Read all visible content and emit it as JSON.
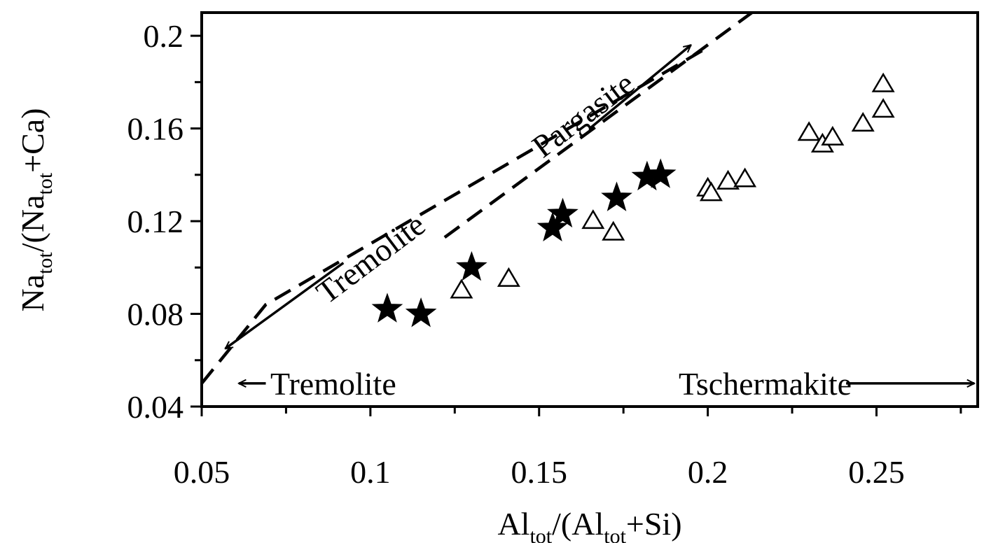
{
  "chart_data": {
    "type": "scatter",
    "x_axis": {
      "label": {
        "main": "Al",
        "sub": "tot",
        "rest_1": "/(Al",
        "sub_2": "tot",
        "rest_2": "+Si)"
      },
      "range": [
        0.05,
        0.28
      ],
      "ticks": [
        0.05,
        0.1,
        0.15,
        0.2,
        0.25
      ],
      "tick_labels": [
        "0.05",
        "0.1",
        "0.15",
        "0.2",
        "0.25"
      ],
      "minor_step": 0.025
    },
    "y_axis": {
      "label": {
        "main": "Na",
        "sub": "tot",
        "rest_1": "/(Na",
        "sub_2": "tot",
        "rest_2": "+Ca)"
      },
      "range": [
        0.04,
        0.21
      ],
      "ticks": [
        0.04,
        0.08,
        0.12,
        0.16,
        0.2
      ],
      "tick_labels": [
        "0.04",
        "0.08",
        "0.12",
        "0.16",
        "0.2"
      ],
      "minor_step": 0.02
    },
    "grid": false,
    "series": [
      {
        "marker": "filled-star",
        "color": "#000000",
        "points": [
          [
            0.105,
            0.082
          ],
          [
            0.115,
            0.08
          ],
          [
            0.13,
            0.1
          ],
          [
            0.154,
            0.117
          ],
          [
            0.157,
            0.123
          ],
          [
            0.173,
            0.13
          ],
          [
            0.182,
            0.139
          ],
          [
            0.186,
            0.14
          ]
        ]
      },
      {
        "marker": "open-triangle",
        "color": "#000000",
        "points": [
          [
            0.127,
            0.09
          ],
          [
            0.141,
            0.095
          ],
          [
            0.166,
            0.12
          ],
          [
            0.172,
            0.115
          ],
          [
            0.2,
            0.134
          ],
          [
            0.201,
            0.132
          ],
          [
            0.206,
            0.137
          ],
          [
            0.211,
            0.138
          ],
          [
            0.23,
            0.158
          ],
          [
            0.234,
            0.153
          ],
          [
            0.237,
            0.156
          ],
          [
            0.246,
            0.162
          ],
          [
            0.252,
            0.168
          ],
          [
            0.252,
            0.179
          ]
        ]
      }
    ],
    "reference_lines": [
      {
        "style": "dashed",
        "points": [
          [
            0.05,
            0.05
          ],
          [
            0.069,
            0.084
          ],
          [
            0.2,
            0.195
          ]
        ]
      },
      {
        "style": "dashed",
        "points": [
          [
            0.122,
            0.113
          ],
          [
            0.214,
            0.211
          ]
        ]
      }
    ],
    "annotations": [
      {
        "text": "Tremolite",
        "position": [
          0.1,
          0.104
        ],
        "rotation": -37
      },
      {
        "text": "Pargasite",
        "position": [
          0.163,
          0.166
        ],
        "rotation": -37
      },
      {
        "text": "Tremolite",
        "position": [
          0.089,
          0.05
        ],
        "rotation": 0
      },
      {
        "text": "Tschermakite",
        "position": [
          0.217,
          0.05
        ],
        "rotation": 0
      }
    ],
    "arrows": [
      {
        "from": [
          0.092,
          0.102
        ],
        "to": [
          0.057,
          0.065
        ]
      },
      {
        "from": [
          0.165,
          0.16
        ],
        "to": [
          0.195,
          0.196
        ]
      },
      {
        "from": [
          0.069,
          0.05
        ],
        "to": [
          0.061,
          0.05
        ]
      },
      {
        "from": [
          0.241,
          0.05
        ],
        "to": [
          0.279,
          0.05
        ]
      }
    ]
  }
}
